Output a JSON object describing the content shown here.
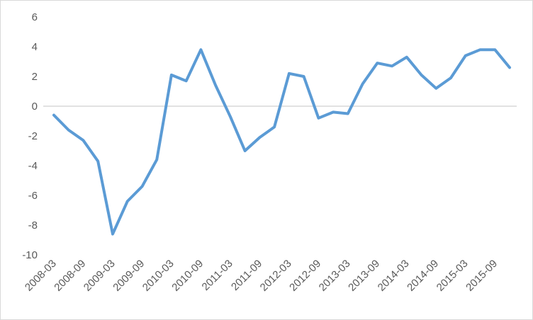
{
  "chart_data": {
    "type": "line",
    "title": "",
    "xlabel": "",
    "ylabel": "",
    "ylim": [
      -10,
      6
    ],
    "yticks": [
      6,
      4,
      2,
      0,
      -2,
      -4,
      -6,
      -8,
      -10
    ],
    "grid": false,
    "legend": "none",
    "x_tick_labels": [
      "2008-03",
      "2008-09",
      "2009-03",
      "2009-09",
      "2010-03",
      "2010-09",
      "2011-03",
      "2011-09",
      "2012-03",
      "2012-09",
      "2013-03",
      "2013-09",
      "2014-03",
      "2014-09",
      "2015-03",
      "2015-09"
    ],
    "x": [
      "2008-03",
      "2008-06",
      "2008-09",
      "2008-12",
      "2009-03",
      "2009-06",
      "2009-09",
      "2009-12",
      "2010-03",
      "2010-06",
      "2010-09",
      "2010-12",
      "2011-03",
      "2011-06",
      "2011-09",
      "2011-12",
      "2012-03",
      "2012-06",
      "2012-09",
      "2012-12",
      "2013-03",
      "2013-06",
      "2013-09",
      "2013-12",
      "2014-03",
      "2014-06",
      "2014-09",
      "2014-12",
      "2015-03",
      "2015-06",
      "2015-09",
      "2015-12"
    ],
    "series": [
      {
        "values": [
          -0.6,
          -1.6,
          -2.3,
          -3.7,
          -8.6,
          -6.4,
          -5.4,
          -3.6,
          2.1,
          1.7,
          3.8,
          1.4,
          -0.7,
          -3.0,
          -2.1,
          -1.4,
          2.2,
          2.0,
          -0.8,
          -0.4,
          -0.5,
          1.5,
          2.9,
          2.7,
          3.3,
          2.1,
          1.2,
          1.9,
          3.4,
          3.8,
          3.8,
          2.6
        ],
        "color": "#5b9bd5"
      }
    ],
    "axis_color": "#d9d9d9"
  }
}
